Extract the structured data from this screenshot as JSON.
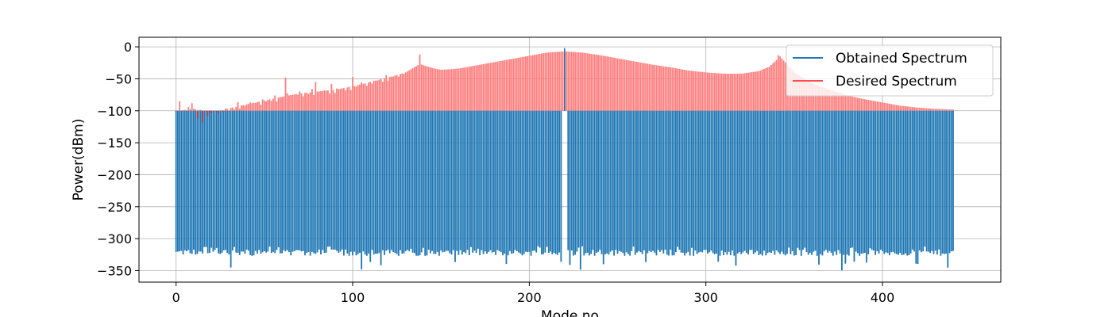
{
  "chart_data": {
    "type": "bar",
    "xlabel": "Mode no",
    "ylabel": "Power(dBm)",
    "xlim": [
      -21,
      467
    ],
    "ylim": [
      -368,
      15
    ],
    "xticks": [
      0,
      100,
      200,
      300,
      400
    ],
    "yticks": [
      0,
      -50,
      -100,
      -150,
      -200,
      -250,
      -300,
      -350
    ],
    "grid": true,
    "legend_position": "top-right",
    "colors": {
      "obtained": "#1f77b4",
      "desired": "#ff7f7f",
      "overlap": "#b03a50",
      "grid": "#b0b0b0"
    },
    "series": [
      {
        "name": "Obtained Spectrum",
        "kind": "bars from -100 dBm baseline",
        "n_modes": 441,
        "baseline": -100,
        "typical_level": -322,
        "level_range": [
          -350,
          -312
        ],
        "center_mode": 220,
        "center_value": -2,
        "center_gap_modes": [
          219,
          221
        ]
      },
      {
        "name": "Desired Spectrum",
        "kind": "bars from -100 dBm baseline",
        "n_modes": 441,
        "baseline": -100,
        "envelope": [
          [
            0,
            -100
          ],
          [
            10,
            -97
          ],
          [
            20,
            -103
          ],
          [
            30,
            -96
          ],
          [
            40,
            -90
          ],
          [
            50,
            -84
          ],
          [
            60,
            -78
          ],
          [
            70,
            -73
          ],
          [
            80,
            -70
          ],
          [
            90,
            -67
          ],
          [
            100,
            -62
          ],
          [
            110,
            -55
          ],
          [
            120,
            -48
          ],
          [
            130,
            -40
          ],
          [
            138,
            -27
          ],
          [
            145,
            -33
          ],
          [
            150,
            -36
          ],
          [
            160,
            -34
          ],
          [
            170,
            -29
          ],
          [
            180,
            -24
          ],
          [
            190,
            -19
          ],
          [
            200,
            -14
          ],
          [
            210,
            -9
          ],
          [
            220,
            -7
          ],
          [
            230,
            -9
          ],
          [
            240,
            -13
          ],
          [
            250,
            -18
          ],
          [
            260,
            -23
          ],
          [
            270,
            -28
          ],
          [
            280,
            -32
          ],
          [
            290,
            -37
          ],
          [
            300,
            -40
          ],
          [
            310,
            -42
          ],
          [
            320,
            -42
          ],
          [
            330,
            -38
          ],
          [
            336,
            -31
          ],
          [
            342,
            -15
          ],
          [
            350,
            -40
          ],
          [
            360,
            -57
          ],
          [
            370,
            -67
          ],
          [
            380,
            -76
          ],
          [
            390,
            -82
          ],
          [
            400,
            -87
          ],
          [
            410,
            -92
          ],
          [
            420,
            -95
          ],
          [
            430,
            -97
          ],
          [
            440,
            -98
          ]
        ],
        "spikes": [
          [
            2,
            -85
          ],
          [
            9,
            -88
          ],
          [
            62,
            -48
          ],
          [
            79,
            -55
          ],
          [
            88,
            -58
          ],
          [
            100,
            -47
          ],
          [
            138,
            -12
          ],
          [
            341,
            -13
          ]
        ],
        "dips": [
          [
            12,
            -112
          ],
          [
            15,
            -118
          ],
          [
            18,
            -108
          ]
        ]
      }
    ]
  }
}
